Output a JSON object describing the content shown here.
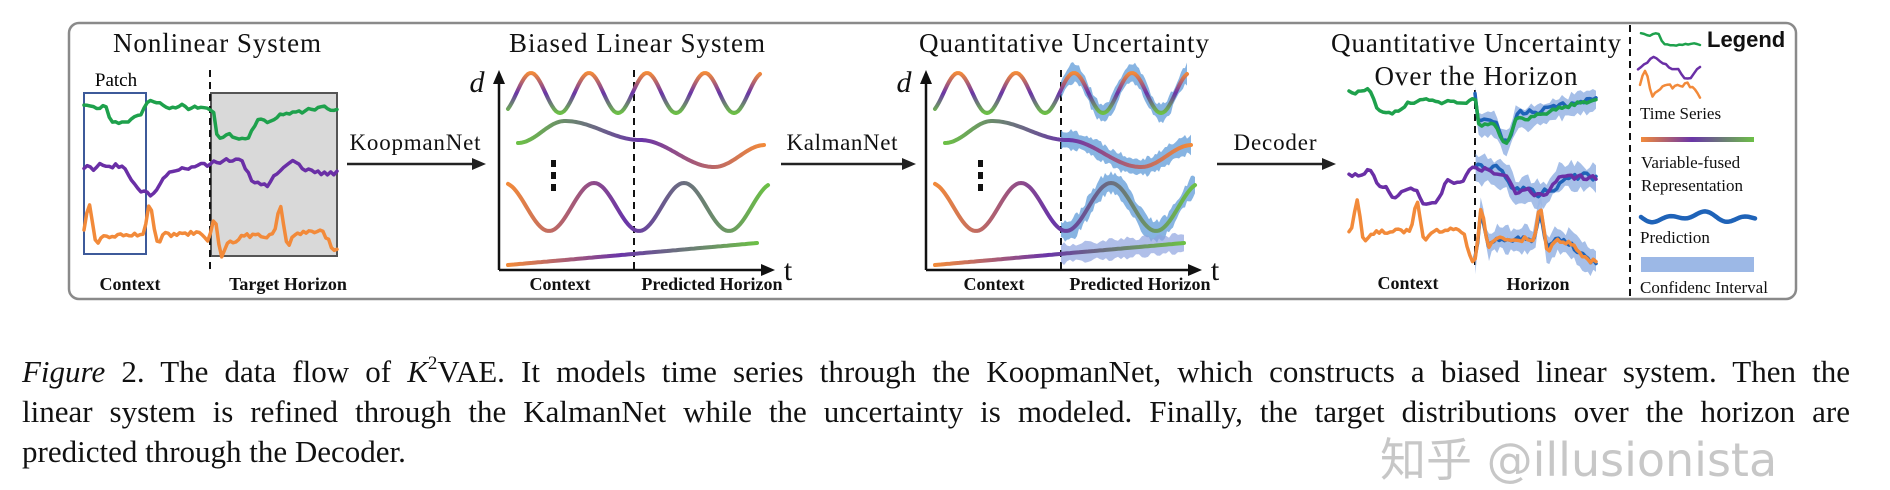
{
  "figure": {
    "panels": {
      "nonlinear": {
        "title": "Nonlinear System",
        "patch_label": "Patch",
        "context_label": "Context",
        "horizon_label": "Target Horizon"
      },
      "biased": {
        "title": "Biased Linear System",
        "y_axis": "d",
        "x_axis": "t",
        "context_label": "Context",
        "horizon_label": "Predicted Horizon"
      },
      "uncertainty": {
        "title": "Quantitative Uncertainty",
        "y_axis": "d",
        "x_axis": "t",
        "context_label": "Context",
        "horizon_label": "Predicted Horizon"
      },
      "horizon": {
        "title_line1": "Quantitative Uncertainty",
        "title_line2": "Over the Horizon",
        "context_label": "Context",
        "horizon_label": "Horizon"
      }
    },
    "arrows": [
      {
        "label": "KoopmanNet"
      },
      {
        "label": "KalmanNet"
      },
      {
        "label": "Decoder"
      }
    ],
    "legend": {
      "title": "Legend",
      "time_series": "Time Series",
      "representation_line1": "Variable-fused",
      "representation_line2": "Representation",
      "prediction": "Prediction",
      "confidence": "Confidenc Interval"
    },
    "colors": {
      "green": "#1ea14c",
      "purple": "#6a2fa6",
      "orange": "#f28a3a",
      "prediction": "#1f63b8",
      "band": "#5f9bd8",
      "frame": "#8a8a8a",
      "horizon_shade": "#d9d9d9"
    }
  },
  "caption": {
    "label": "Figure",
    "number": "2.",
    "text_a": "The data flow of",
    "symbol": "K",
    "superscript": "2",
    "line1_rest": "VAE. It models time series through the KoopmanNet, which constructs a biased linear system.  Then the",
    "line2": "linear system is refined through the KalmanNet while the uncertainty is modeled. Finally, the target distributions over the horizon are",
    "line3": "predicted through the Decoder."
  },
  "watermark": "知乎 @illusionista"
}
